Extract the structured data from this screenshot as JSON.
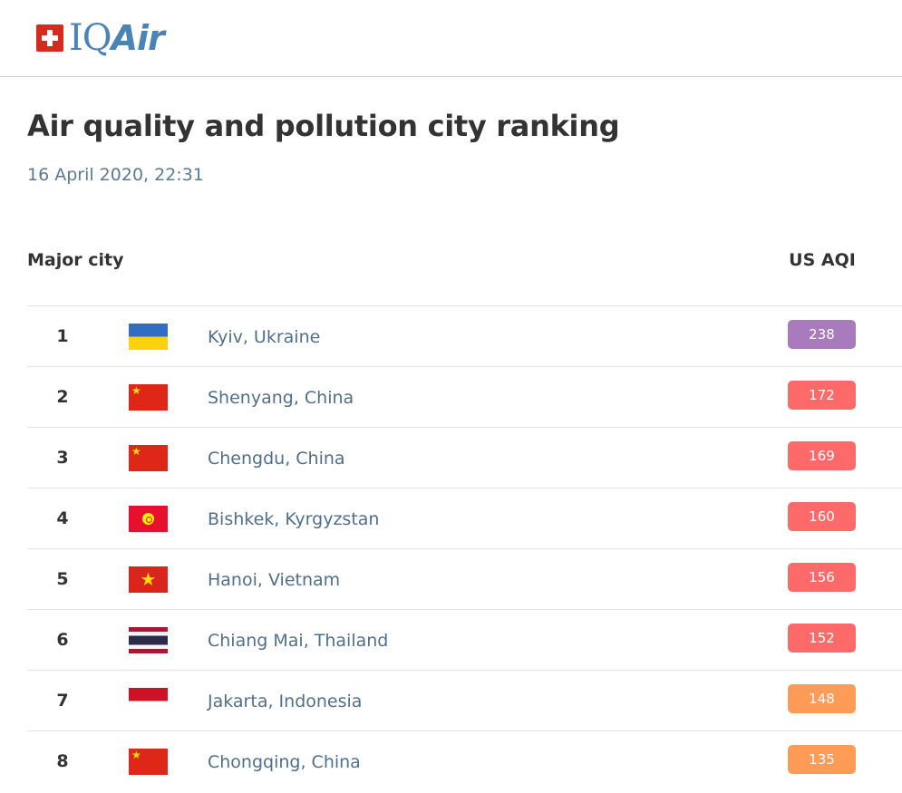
{
  "brand": {
    "logo_iq": "IQ",
    "logo_air": "Air"
  },
  "page": {
    "title": "Air quality and pollution city ranking",
    "timestamp": "16 April 2020, 22:31"
  },
  "table": {
    "col_city": "Major city",
    "col_aqi": "US AQI",
    "rows": [
      {
        "rank": "1",
        "flag": "ukraine-flag-icon",
        "city": "Kyiv, Ukraine",
        "aqi": "238",
        "color": "#a97abc"
      },
      {
        "rank": "2",
        "flag": "china-flag-icon",
        "city": "Shenyang, China",
        "aqi": "172",
        "color": "#fe6a69"
      },
      {
        "rank": "3",
        "flag": "china-flag-icon",
        "city": "Chengdu, China",
        "aqi": "169",
        "color": "#fe6a69"
      },
      {
        "rank": "4",
        "flag": "kyrgyzstan-flag-icon",
        "city": "Bishkek, Kyrgyzstan",
        "aqi": "160",
        "color": "#fe6a69"
      },
      {
        "rank": "5",
        "flag": "vietnam-flag-icon",
        "city": "Hanoi, Vietnam",
        "aqi": "156",
        "color": "#fe6a69"
      },
      {
        "rank": "6",
        "flag": "thailand-flag-icon",
        "city": "Chiang Mai, Thailand",
        "aqi": "152",
        "color": "#fe6a69"
      },
      {
        "rank": "7",
        "flag": "indonesia-flag-icon",
        "city": "Jakarta, Indonesia",
        "aqi": "148",
        "color": "#fe9b57"
      },
      {
        "rank": "8",
        "flag": "china-flag-icon",
        "city": "Chongqing, China",
        "aqi": "135",
        "color": "#fe9b57"
      }
    ]
  }
}
